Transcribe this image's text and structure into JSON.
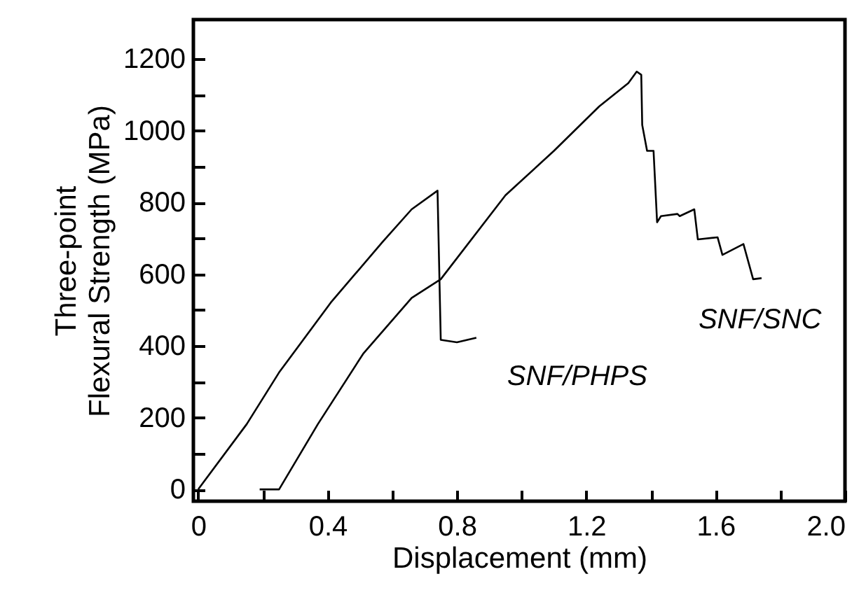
{
  "chart_data": {
    "type": "line",
    "xlabel": "Displacement (mm)",
    "ylabel": "Three-point\nFlexural Strength (MPa)",
    "xlim": [
      -0.015,
      2.0
    ],
    "ylim": [
      -33,
      1310
    ],
    "xticks": [
      0,
      {
        "value": 0.2,
        "label": null
      },
      0.4,
      {
        "value": 0.6,
        "label": null
      },
      0.8,
      {
        "value": 1.0,
        "label": null
      },
      1.2,
      {
        "value": 1.4,
        "label": null
      },
      1.6,
      {
        "value": 1.8,
        "label": null
      },
      {
        "value": 2.0,
        "label": "2.0"
      }
    ],
    "yticks": [
      0,
      {
        "value": 100,
        "label": null
      },
      200,
      {
        "value": 300,
        "label": null
      },
      400,
      {
        "value": 500,
        "label": null
      },
      600,
      {
        "value": 700,
        "label": null
      },
      800,
      {
        "value": 900,
        "label": null
      },
      1000,
      {
        "value": 1100,
        "label": null
      },
      1200
    ],
    "grid": false,
    "marker": "none",
    "line_style": "solid",
    "series": [
      {
        "name": "SNF/PHPS",
        "color": "#000000",
        "x": [
          0,
          0.15,
          0.25,
          0.41,
          0.57,
          0.66,
          0.74,
          0.75,
          0.8,
          0.86
        ],
        "values": [
          0,
          182,
          326,
          521,
          690,
          781,
          833,
          417,
          410,
          423
        ]
      },
      {
        "name": "SNF/SNC",
        "color": "#000000",
        "x": [
          0.19,
          0.25,
          0.37,
          0.51,
          0.66,
          0.75,
          0.95,
          1.1,
          1.24,
          1.33,
          1.356,
          1.37,
          1.373,
          1.388,
          1.408,
          1.419,
          1.431,
          1.482,
          1.489,
          1.534,
          1.545,
          1.606,
          1.621,
          1.686,
          1.716,
          1.742
        ],
        "values": [
          0,
          0,
          182,
          378,
          534,
          586,
          820,
          944,
          1068,
          1133,
          1165,
          1156,
          1016,
          944,
          944,
          745,
          762,
          768,
          762,
          781,
          697,
          703,
          654,
          684,
          586,
          589
        ]
      }
    ]
  }
}
